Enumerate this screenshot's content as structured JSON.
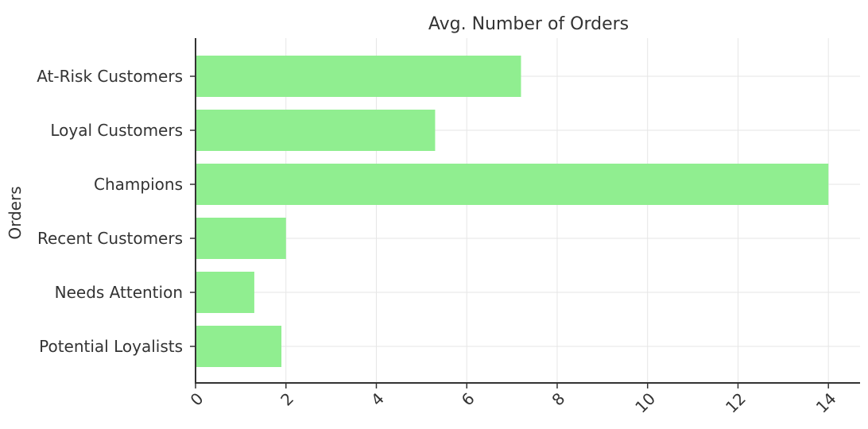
{
  "chart_data": {
    "type": "bar",
    "orientation": "horizontal",
    "title": "Avg. Number of Orders",
    "xlabel": "",
    "ylabel": "Orders",
    "categories": [
      "At-Risk Customers",
      "Loyal Customers",
      "Champions",
      "Recent Customers",
      "Needs Attention",
      "Potential Loyalists"
    ],
    "values": [
      7.2,
      5.3,
      14.0,
      2.0,
      1.3,
      1.9
    ],
    "xlim": [
      0,
      14.7
    ],
    "xticks": [
      "0",
      "2",
      "4",
      "6",
      "8",
      "10",
      "12",
      "14"
    ],
    "grid": true,
    "legend": "none",
    "bar_color": "#90ee90",
    "grid_color": "#e6e6e6",
    "axis_color": "#333333"
  }
}
